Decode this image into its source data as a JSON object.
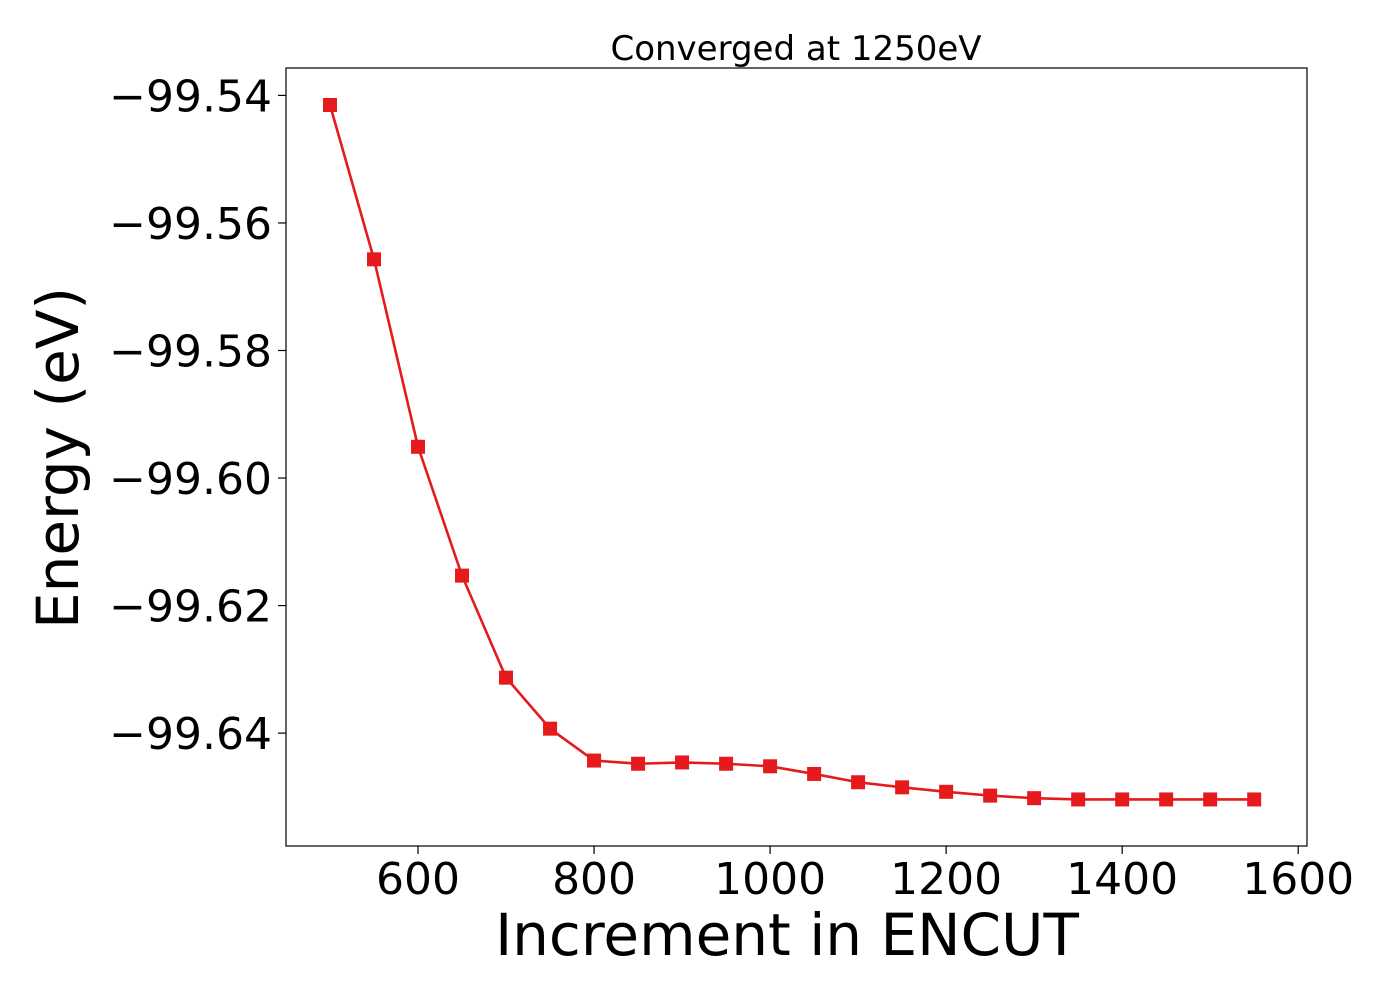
{
  "chart_data": {
    "type": "line",
    "title": "Converged at 1250eV",
    "xlabel": "Increment in ENCUT",
    "ylabel": "Energy (eV)",
    "xlim": [
      450,
      1610
    ],
    "ylim": [
      -99.6577,
      -99.5357
    ],
    "xticks": [
      600,
      800,
      1000,
      1200,
      1400,
      1600
    ],
    "xtick_labels": [
      "600",
      "800",
      "1000",
      "1200",
      "1400",
      "1600"
    ],
    "yticks": [
      -99.54,
      -99.56,
      -99.58,
      -99.6,
      -99.62,
      -99.64
    ],
    "ytick_labels": [
      "−99.54",
      "−99.56",
      "−99.58",
      "−99.60",
      "−99.62",
      "−99.64"
    ],
    "grid": false,
    "series": [
      {
        "color": "#e41a1c",
        "marker": "square",
        "x": [
          500,
          550,
          600,
          650,
          700,
          750,
          800,
          850,
          900,
          950,
          1000,
          1050,
          1100,
          1150,
          1200,
          1250,
          1300,
          1350,
          1400,
          1450,
          1500,
          1550
        ],
        "y": [
          -99.5415,
          -99.5657,
          -99.5951,
          -99.6153,
          -99.6313,
          -99.6393,
          -99.6443,
          -99.6448,
          -99.6446,
          -99.6448,
          -99.6452,
          -99.6464,
          -99.6477,
          -99.6485,
          -99.6492,
          -99.6498,
          -99.6502,
          -99.6504,
          -99.6504,
          -99.6504,
          -99.6504,
          -99.6504
        ]
      }
    ]
  }
}
